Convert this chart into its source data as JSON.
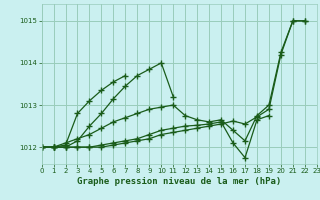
{
  "title": "Graphe pression niveau de la mer (hPa)",
  "background_color": "#caf0f0",
  "grid_color": "#99ccbb",
  "line_color": "#1a5c1a",
  "xlim": [
    0,
    23
  ],
  "ylim": [
    1011.6,
    1015.4
  ],
  "yticks": [
    1012,
    1013,
    1014,
    1015
  ],
  "xticks": [
    0,
    1,
    2,
    3,
    4,
    5,
    6,
    7,
    8,
    9,
    10,
    11,
    12,
    13,
    14,
    15,
    16,
    17,
    18,
    19,
    20,
    21,
    22,
    23
  ],
  "series": [
    [
      1012.0,
      1012.0,
      1012.0,
      1012.15,
      1012.5,
      1012.8,
      1013.15,
      1013.45,
      1013.7,
      1013.85,
      1014.0,
      1013.2,
      null,
      null,
      null,
      null,
      null,
      null,
      null,
      null,
      null,
      null,
      null,
      null
    ],
    [
      1012.0,
      1012.0,
      1012.05,
      1012.8,
      1013.1,
      1013.35,
      1013.55,
      1013.7,
      null,
      null,
      null,
      null,
      null,
      null,
      null,
      null,
      null,
      null,
      null,
      null,
      null,
      null,
      null,
      null
    ],
    [
      1012.0,
      1012.0,
      1012.1,
      1012.2,
      1012.3,
      1012.45,
      1012.6,
      1012.7,
      1012.8,
      1012.9,
      1012.95,
      1013.0,
      1012.75,
      1012.65,
      1012.6,
      1012.65,
      1012.4,
      1012.15,
      1012.75,
      1013.0,
      1014.25,
      1015.0,
      1015.0,
      null
    ],
    [
      1012.0,
      1012.0,
      1012.0,
      1012.0,
      1012.0,
      1012.05,
      1012.1,
      1012.15,
      1012.2,
      1012.3,
      1012.4,
      1012.45,
      1012.5,
      1012.52,
      1012.55,
      1012.6,
      1012.1,
      1011.75,
      1012.65,
      1012.75,
      null,
      null,
      null,
      null
    ],
    [
      1012.0,
      1012.0,
      1012.0,
      1012.0,
      1012.0,
      1012.0,
      1012.05,
      1012.1,
      1012.15,
      1012.2,
      1012.3,
      1012.35,
      1012.4,
      1012.45,
      1012.5,
      1012.55,
      1012.62,
      1012.55,
      1012.72,
      1012.9,
      1014.2,
      1015.0,
      1015.0,
      null
    ]
  ]
}
